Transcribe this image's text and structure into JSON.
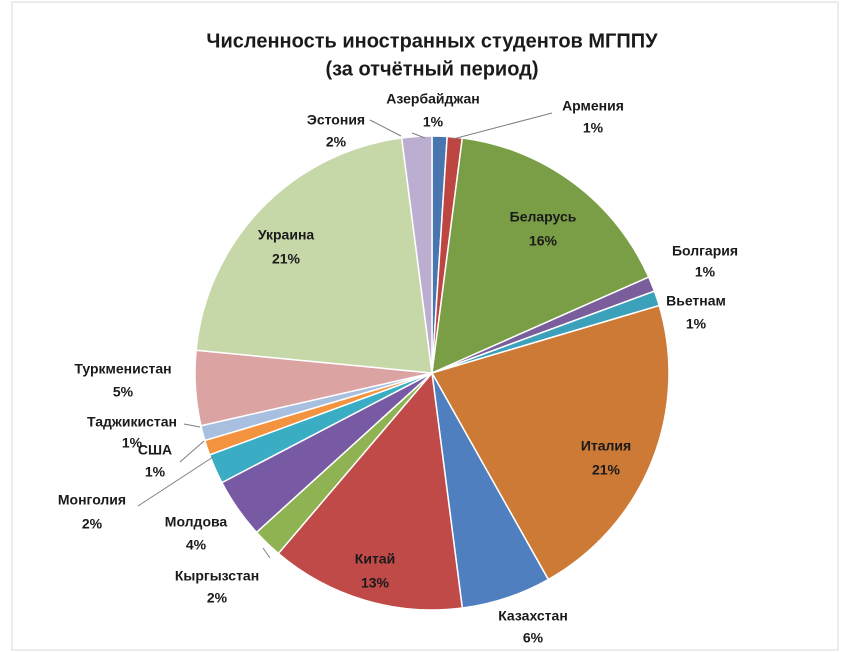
{
  "chart_data": {
    "type": "pie",
    "title": "Численность иностранных студентов МГППУ",
    "subtitle": "(за отчётный период)",
    "categories": [
      "Азербайджан",
      "Армения",
      "Беларусь",
      "Болгария",
      "Вьетнам",
      "Италия",
      "Казахстан",
      "Китай",
      "Кыргызстан",
      "Молдова",
      "Монголия",
      "США",
      "Таджикистан",
      "Туркменистан",
      "Украина",
      "Эстония"
    ],
    "values": [
      1,
      1,
      16,
      1,
      1,
      21,
      6,
      13,
      2,
      4,
      2,
      1,
      1,
      5,
      21,
      2
    ],
    "value_labels": [
      "1%",
      "1%",
      "16%",
      "1%",
      "1%",
      "21%",
      "6%",
      "13%",
      "2%",
      "4%",
      "2%",
      "1%",
      "1%",
      "5%",
      "21%",
      "2%"
    ],
    "colors": [
      "#4a76b0",
      "#bd4643",
      "#7a9e45",
      "#7a5e9c",
      "#3ba0ba",
      "#cc7a35",
      "#4f7fbf",
      "#c04a48",
      "#8fb352",
      "#7859a3",
      "#3aadc4",
      "#f4933f",
      "#a9bfe0",
      "#dca3a3",
      "#c6d7a8",
      "#bcaed0"
    ]
  }
}
